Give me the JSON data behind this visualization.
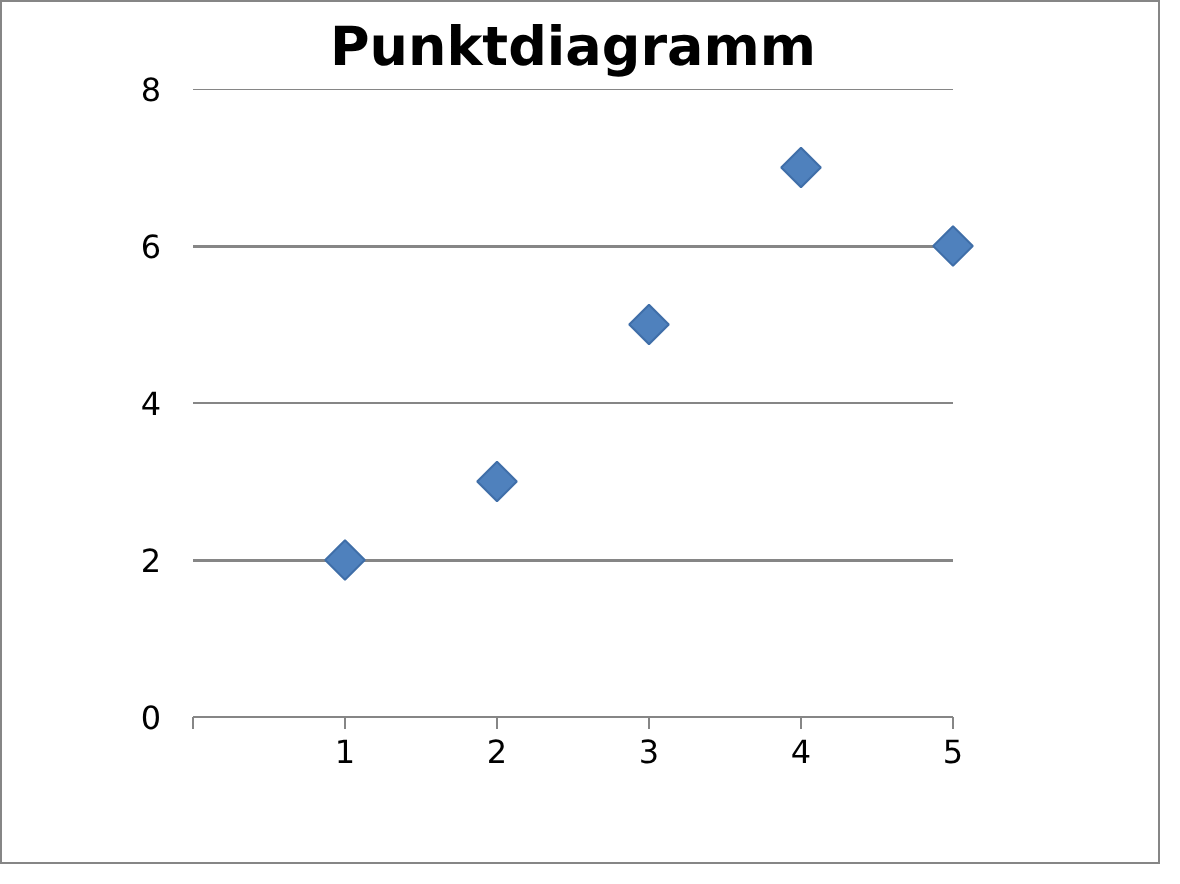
{
  "chart_data": {
    "type": "scatter",
    "title": "Punktdiagramm",
    "x": [
      1,
      2,
      3,
      4,
      5
    ],
    "series": [
      {
        "color": "#4f81bd",
        "values": [
          2,
          3,
          5,
          7,
          6
        ]
      }
    ],
    "marker": "diamond",
    "xlim": [
      0,
      5
    ],
    "ylim": [
      0,
      8
    ],
    "xticks": [
      {
        "value": 0,
        "label": null
      },
      1,
      2,
      3,
      4,
      5
    ],
    "yticks": [
      0,
      2,
      4,
      6,
      8
    ],
    "grid": "y"
  }
}
